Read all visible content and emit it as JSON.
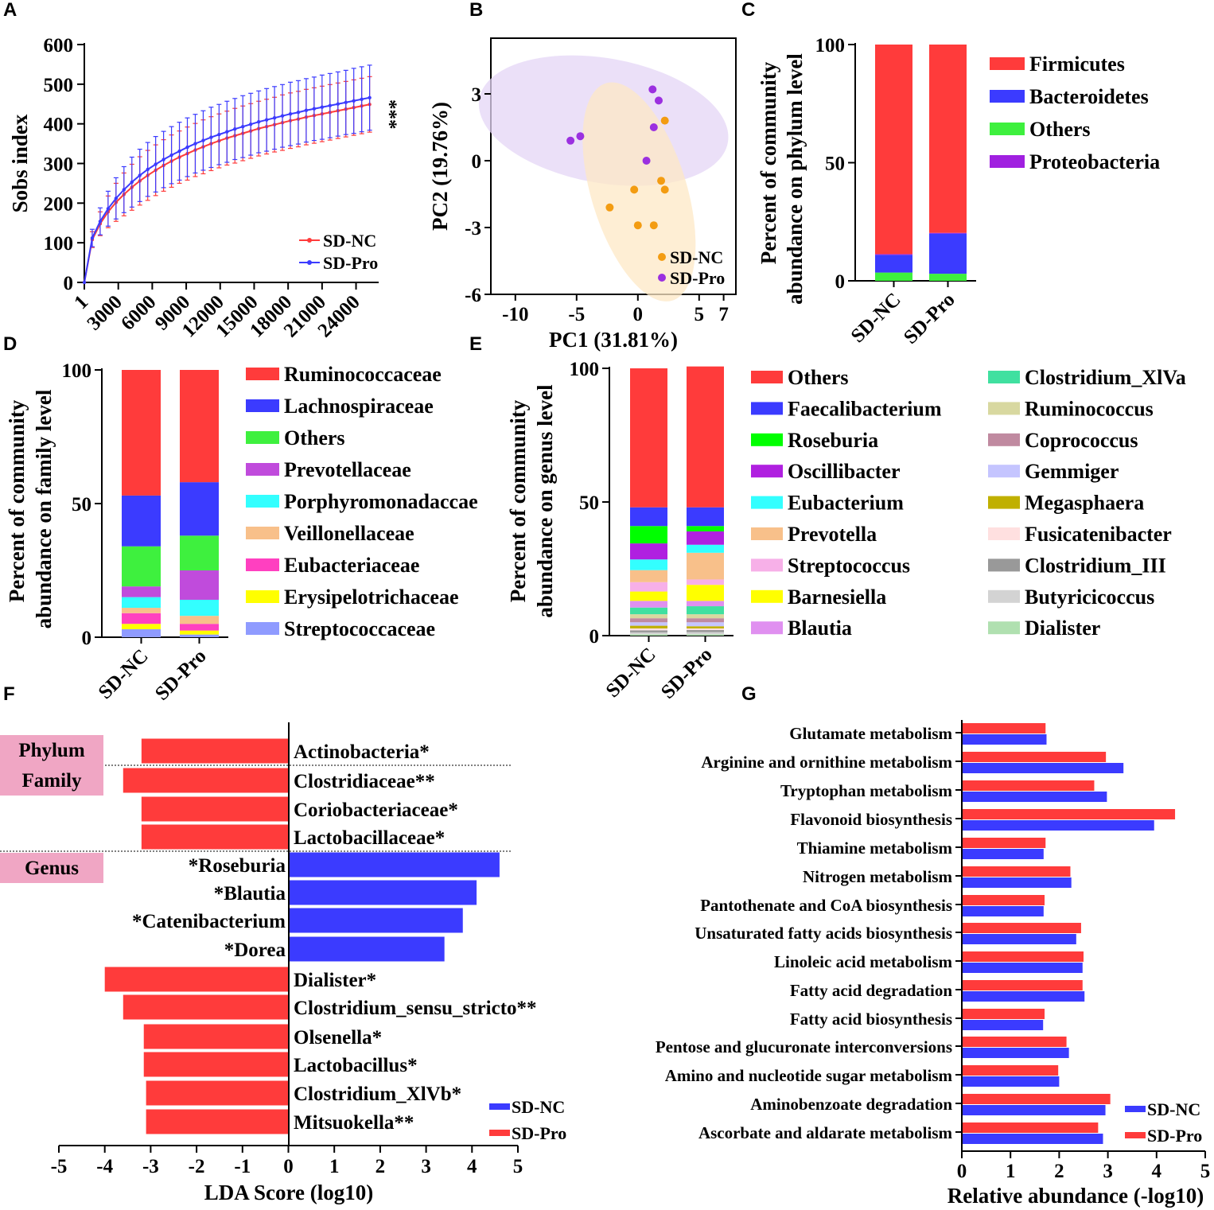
{
  "colors": {
    "nc_red": "#ff3b3b",
    "pro_blue": "#3b3bff",
    "orange": "#f39c12",
    "purple": "#9b30e0",
    "nc_ellipse": "#fde8c6",
    "pro_ellipse": "#e4d6f5",
    "pink_box": "#f0a6c4"
  },
  "panel_letters": [
    "A",
    "B",
    "C",
    "D",
    "E",
    "F",
    "G"
  ],
  "chart_data": [
    {
      "panel": "A",
      "type": "line",
      "title": "",
      "xlabel": "",
      "ylabel": "Sobs index",
      "xlim": [
        0,
        26000
      ],
      "ylim": [
        0,
        600
      ],
      "x_ticks": [
        "1",
        "3000",
        "6000",
        "9000",
        "12000",
        "15000",
        "18000",
        "21000",
        "24000"
      ],
      "y_ticks": [
        "0",
        "100",
        "200",
        "300",
        "400",
        "500",
        "600"
      ],
      "significance": "***",
      "x": [
        1,
        700,
        1400,
        2100,
        2800,
        3500,
        4200,
        4900,
        5600,
        6300,
        7000,
        7700,
        8400,
        9100,
        9800,
        10500,
        11200,
        11900,
        12600,
        13300,
        14000,
        14700,
        15400,
        16100,
        16800,
        17500,
        18200,
        18900,
        19600,
        20300,
        21000,
        21700,
        22400,
        23100,
        23800,
        24500,
        25200
      ],
      "series": [
        {
          "name": "SD-NC",
          "color": "#ff3b3b",
          "values": [
            0,
            108,
            148,
            178,
            202,
            222,
            240,
            256,
            270,
            283,
            295,
            306,
            316,
            325,
            334,
            342,
            350,
            357,
            364,
            370,
            376,
            382,
            388,
            393,
            398,
            403,
            408,
            412,
            417,
            421,
            425,
            429,
            433,
            437,
            441,
            445,
            449
          ],
          "error": [
            0,
            20,
            30,
            40,
            48,
            54,
            58,
            61,
            63,
            64,
            65,
            66,
            66,
            67,
            67,
            68,
            68,
            68,
            68,
            69,
            69,
            69,
            69,
            69,
            69,
            70,
            70,
            70,
            70,
            70,
            70,
            70,
            70,
            70,
            70,
            70,
            70
          ]
        },
        {
          "name": "SD-Pro",
          "color": "#3b3bff",
          "values": [
            0,
            112,
            154,
            186,
            212,
            234,
            253,
            270,
            285,
            298,
            310,
            321,
            331,
            341,
            350,
            358,
            366,
            373,
            380,
            387,
            393,
            399,
            405,
            410,
            415,
            420,
            425,
            429,
            434,
            438,
            442,
            446,
            450,
            454,
            458,
            462,
            466
          ],
          "error": [
            0,
            22,
            34,
            44,
            52,
            58,
            63,
            66,
            68,
            70,
            71,
            72,
            73,
            74,
            74,
            75,
            76,
            76,
            77,
            77,
            78,
            78,
            78,
            79,
            79,
            79,
            80,
            80,
            80,
            80,
            81,
            81,
            81,
            81,
            82,
            82,
            82
          ]
        }
      ]
    },
    {
      "panel": "B",
      "type": "scatter",
      "xlabel": "PC1 (31.81%)",
      "ylabel": "PC2 (19.76%)",
      "xlim": [
        -12,
        8
      ],
      "ylim": [
        -6,
        5.5
      ],
      "x_ticks": [
        "-10",
        "-5",
        "0",
        "5",
        "7"
      ],
      "y_ticks": [
        "-6",
        "-3",
        "0",
        "3"
      ],
      "series": [
        {
          "name": "SD-NC",
          "color": "#f39c12",
          "points": [
            [
              2.2,
              1.8
            ],
            [
              1.9,
              -0.9
            ],
            [
              2.2,
              -1.3
            ],
            [
              -0.3,
              -1.3
            ],
            [
              -2.3,
              -2.1
            ],
            [
              0.0,
              -2.9
            ],
            [
              1.3,
              -2.9
            ]
          ],
          "ellipse": {
            "cx": 0.1,
            "cy": -1.4,
            "rx": 3.9,
            "ry": 5.1,
            "angle_deg": -17
          }
        },
        {
          "name": "SD-Pro",
          "color": "#9b30e0",
          "points": [
            [
              1.2,
              3.2
            ],
            [
              1.7,
              2.7
            ],
            [
              1.3,
              1.5
            ],
            [
              0.7,
              0.0
            ],
            [
              -5.5,
              0.9
            ],
            [
              -4.7,
              1.1
            ]
          ],
          "ellipse": {
            "cx": -2.8,
            "cy": 1.8,
            "rx": 10.3,
            "ry": 2.8,
            "angle_deg": 10
          }
        }
      ]
    },
    {
      "panel": "C",
      "type": "bar",
      "stacked": true,
      "ylabel": "Percent of community abundance on phylum level",
      "ylim": [
        0,
        100
      ],
      "y_ticks": [
        "0",
        "50",
        "100"
      ],
      "categories": [
        "SD-NC",
        "SD-Pro"
      ],
      "series": [
        {
          "name": "Others",
          "color": "#3ef03e",
          "values": [
            3.5,
            3.0
          ]
        },
        {
          "name": "Bacteroidetes",
          "color": "#3b3bff",
          "values": [
            7.5,
            17.0
          ]
        },
        {
          "name": "Proteobacteria",
          "color": "#a020e0",
          "values": [
            0.3,
            0.3
          ]
        },
        {
          "name": "Firmicutes",
          "color": "#ff3b3b",
          "values": [
            88.7,
            79.7
          ]
        }
      ],
      "legend": [
        "Firmicutes",
        "Bacteroidetes",
        "Others",
        "Proteobacteria"
      ]
    },
    {
      "panel": "D",
      "type": "bar",
      "stacked": true,
      "ylabel": "Percent of community abundance on family level",
      "ylim": [
        0,
        100
      ],
      "y_ticks": [
        "0",
        "50",
        "100"
      ],
      "categories": [
        "SD-NC",
        "SD-Pro"
      ],
      "series": [
        {
          "name": "Streptococcaceae",
          "color": "#8f9bff",
          "values": [
            3.0,
            1.0
          ]
        },
        {
          "name": "Erysipelotrichaceae",
          "color": "#ffff00",
          "values": [
            2.0,
            1.5
          ]
        },
        {
          "name": "Eubacteriaceae",
          "color": "#ff40c0",
          "values": [
            4.0,
            2.5
          ]
        },
        {
          "name": "Veillonellaceae",
          "color": "#f8c08a",
          "values": [
            2.0,
            3.0
          ]
        },
        {
          "name": "Porphyromonadaccae",
          "color": "#33ffff",
          "values": [
            4.0,
            6.0
          ]
        },
        {
          "name": "Prevotellaceae",
          "color": "#c04bdc",
          "values": [
            4.0,
            11.0
          ]
        },
        {
          "name": "Others",
          "color": "#3ef03e",
          "values": [
            15.0,
            13.0
          ]
        },
        {
          "name": "Lachnospiraceae",
          "color": "#3b3bff",
          "values": [
            19.0,
            20.0
          ]
        },
        {
          "name": "Ruminococcaceae",
          "color": "#ff3b3b",
          "values": [
            47.0,
            42.0
          ]
        }
      ],
      "legend": [
        "Ruminococcaceae",
        "Lachnospiraceae",
        "Others",
        "Prevotellaceae",
        "Porphyromonadaccae",
        "Veillonellaceae",
        "Eubacteriaceae",
        "Erysipelotrichaceae",
        "Streptococcaceae"
      ]
    },
    {
      "panel": "E",
      "type": "bar",
      "stacked": true,
      "ylabel": "Percent of community abundance on genus level",
      "ylim": [
        0,
        100
      ],
      "y_ticks": [
        "0",
        "50",
        "100"
      ],
      "categories": [
        "SD-NC",
        "SD-Pro"
      ],
      "series": [
        {
          "name": "Dialister",
          "color": "#b0e0b0",
          "values": [
            0.5,
            0.5
          ]
        },
        {
          "name": "Butyricicoccus",
          "color": "#d3d3d3",
          "values": [
            0.7,
            0.8
          ]
        },
        {
          "name": "Clostridium_III",
          "color": "#999999",
          "values": [
            0.8,
            0.8
          ]
        },
        {
          "name": "Fusicatenibacter",
          "color": "#ffe0e0",
          "values": [
            0.7,
            0.6
          ]
        },
        {
          "name": "Megasphaera",
          "color": "#c0b000",
          "values": [
            1.0,
            0.8
          ]
        },
        {
          "name": "Gemmiger",
          "color": "#c5c5ff",
          "values": [
            1.3,
            1.5
          ]
        },
        {
          "name": "Coprococcus",
          "color": "#c08aa0",
          "values": [
            1.5,
            1.5
          ]
        },
        {
          "name": "Ruminococcus",
          "color": "#d8d8a0",
          "values": [
            1.5,
            1.5
          ]
        },
        {
          "name": "Clostridium_XlVa",
          "color": "#40e0a0",
          "values": [
            2.5,
            3.0
          ]
        },
        {
          "name": "Blautia",
          "color": "#e090f0",
          "values": [
            2.5,
            2.0
          ]
        },
        {
          "name": "Barnesiella",
          "color": "#ffff00",
          "values": [
            3.5,
            6.0
          ]
        },
        {
          "name": "Streptococcus",
          "color": "#f7b0e8",
          "values": [
            3.5,
            2.0
          ]
        },
        {
          "name": "Prevotella",
          "color": "#f8c08a",
          "values": [
            4.5,
            10.0
          ]
        },
        {
          "name": "Eubacterium",
          "color": "#33ffff",
          "values": [
            4.0,
            3.0
          ]
        },
        {
          "name": "Oscillibacter",
          "color": "#b020e0",
          "values": [
            6.0,
            5.0
          ]
        },
        {
          "name": "Roseburia",
          "color": "#00ff00",
          "values": [
            6.5,
            2.0
          ]
        },
        {
          "name": "Faecalibacterium",
          "color": "#3b3bff",
          "values": [
            7.0,
            7.0
          ]
        },
        {
          "name": "Others",
          "color": "#ff3b3b",
          "values": [
            52.0,
            52.7
          ]
        }
      ],
      "legend_left": [
        "Others",
        "Faecalibacterium",
        "Roseburia",
        "Oscillibacter",
        "Eubacterium",
        "Prevotella",
        "Streptococcus",
        "Barnesiella",
        "Blautia"
      ],
      "legend_right": [
        "Clostridium_XlVa",
        "Ruminococcus",
        "Coprococcus",
        "Gemmiger",
        "Megasphaera",
        "Fusicatenibacter",
        "Clostridium_III",
        "Butyricicoccus",
        "Dialister"
      ]
    },
    {
      "panel": "F",
      "type": "bar",
      "orientation": "horizontal",
      "xlabel": "LDA Score (log10)",
      "xlim": [
        -5,
        5
      ],
      "x_ticks": [
        "-5",
        "-4",
        "-3",
        "-2",
        "-1",
        "0",
        "1",
        "2",
        "3",
        "4",
        "5"
      ],
      "groups": [
        {
          "name": "Phylum",
          "start": 0,
          "end": 0
        },
        {
          "name": "Family",
          "start": 1,
          "end": 3
        },
        {
          "name": "Genus",
          "start": 4,
          "end": 13
        }
      ],
      "bars": [
        {
          "label": "Actinobacteria*",
          "value": -3.2,
          "group": "SD-Pro"
        },
        {
          "label": "Clostridiaceae**",
          "value": -3.6,
          "group": "SD-Pro"
        },
        {
          "label": "Coriobacteriaceae*",
          "value": -3.2,
          "group": "SD-Pro"
        },
        {
          "label": "Lactobacillaceae*",
          "value": -3.2,
          "group": "SD-Pro"
        },
        {
          "label": "*Roseburia",
          "value": 4.6,
          "group": "SD-NC"
        },
        {
          "label": "*Blautia",
          "value": 4.1,
          "group": "SD-NC"
        },
        {
          "label": "*Catenibacterium",
          "value": 3.8,
          "group": "SD-NC"
        },
        {
          "label": "*Dorea",
          "value": 3.4,
          "group": "SD-NC"
        },
        {
          "label": "Dialister*",
          "value": -4.0,
          "group": "SD-Pro"
        },
        {
          "label": "Clostridium_sensu_stricto**",
          "value": -3.6,
          "group": "SD-Pro"
        },
        {
          "label": "Olsenella*",
          "value": -3.15,
          "group": "SD-Pro"
        },
        {
          "label": "Lactobacillus*",
          "value": -3.15,
          "group": "SD-Pro"
        },
        {
          "label": "Clostridium_XlVb*",
          "value": -3.1,
          "group": "SD-Pro"
        },
        {
          "label": "Mitsuokella**",
          "value": -3.1,
          "group": "SD-Pro"
        }
      ],
      "legend": [
        "SD-NC",
        "SD-Pro"
      ]
    },
    {
      "panel": "G",
      "type": "bar",
      "orientation": "horizontal",
      "xlabel": "Relative abundance (-log10)",
      "xlim": [
        0,
        5
      ],
      "x_ticks": [
        "0",
        "1",
        "2",
        "3",
        "4",
        "5"
      ],
      "categories": [
        "Glutamate metabolism",
        "Arginine and ornithine metabolism",
        "Tryptophan metabolism",
        "Flavonoid biosynthesis",
        "Thiamine metabolism",
        "Nitrogen metabolism",
        "Pantothenate and CoA biosynthesis",
        "Unsaturated fatty acids biosynthesis",
        "Linoleic acid metabolism",
        "Fatty acid degradation",
        "Fatty acid biosynthesis",
        "Pentose and glucuronate interconversions",
        "Amino and nucleotide sugar metabolism",
        "Aminobenzoate degradation",
        "Ascorbate and aldarate metabolism"
      ],
      "series": [
        {
          "name": "SD-Pro",
          "color": "#ff3b3b",
          "values": [
            1.72,
            2.96,
            2.72,
            4.38,
            1.72,
            2.23,
            1.7,
            2.45,
            2.5,
            2.48,
            1.7,
            2.15,
            1.98,
            3.05,
            2.8
          ]
        },
        {
          "name": "SD-NC",
          "color": "#3b3bff",
          "values": [
            1.74,
            3.32,
            2.98,
            3.95,
            1.68,
            2.25,
            1.68,
            2.35,
            2.48,
            2.52,
            1.67,
            2.2,
            2.0,
            2.95,
            2.9
          ]
        }
      ],
      "legend": [
        "SD-NC",
        "SD-Pro"
      ]
    }
  ]
}
